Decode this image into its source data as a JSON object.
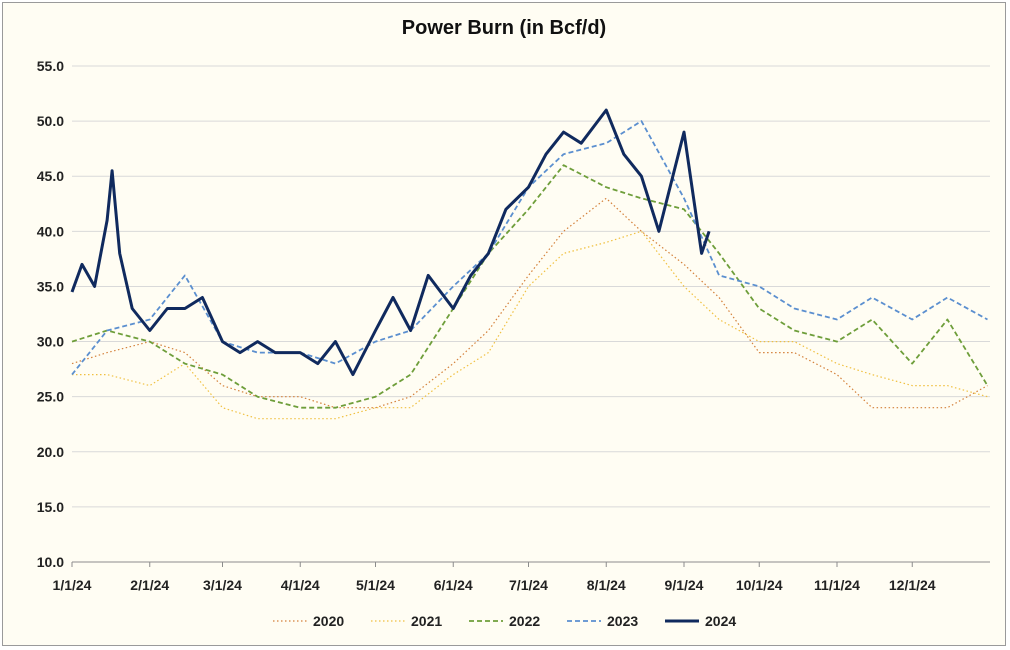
{
  "chart_data": {
    "type": "line",
    "title": "Power Burn (in Bcf/d)",
    "xlabel": "",
    "ylabel": "",
    "ylim": [
      10,
      55
    ],
    "yticks": [
      "10.0",
      "15.0",
      "20.0",
      "25.0",
      "30.0",
      "35.0",
      "40.0",
      "45.0",
      "50.0",
      "55.0"
    ],
    "xticks": [
      "1/1/24",
      "2/1/24",
      "3/1/24",
      "4/1/24",
      "5/1/24",
      "6/1/24",
      "7/1/24",
      "8/1/24",
      "9/1/24",
      "10/1/24",
      "11/1/24",
      "12/1/24"
    ],
    "legend_position": "bottom",
    "grid": "horizontal",
    "series": [
      {
        "name": "2020",
        "color": "#d4803a",
        "style": "dotted",
        "x": [
          "1/1/24",
          "1/15/24",
          "2/1/24",
          "2/15/24",
          "3/1/24",
          "3/15/24",
          "4/1/24",
          "4/15/24",
          "5/1/24",
          "5/15/24",
          "6/1/24",
          "6/15/24",
          "7/1/24",
          "7/15/24",
          "8/1/24",
          "8/15/24",
          "9/1/24",
          "9/15/24",
          "10/1/24",
          "10/15/24",
          "11/1/24",
          "11/15/24",
          "12/1/24",
          "12/15/24",
          "12/31/24"
        ],
        "values": [
          28,
          29,
          30,
          29,
          26,
          25,
          25,
          24,
          24,
          25,
          28,
          31,
          36,
          40,
          43,
          40,
          37,
          34,
          29,
          29,
          27,
          24,
          24,
          24,
          26
        ]
      },
      {
        "name": "2021",
        "color": "#f0c040",
        "style": "dotted",
        "x": [
          "1/1/24",
          "1/15/24",
          "2/1/24",
          "2/15/24",
          "3/1/24",
          "3/15/24",
          "4/1/24",
          "4/15/24",
          "5/1/24",
          "5/15/24",
          "6/1/24",
          "6/15/24",
          "7/1/24",
          "7/15/24",
          "8/1/24",
          "8/15/24",
          "9/1/24",
          "9/15/24",
          "10/1/24",
          "10/15/24",
          "11/1/24",
          "11/15/24",
          "12/1/24",
          "12/15/24",
          "12/31/24"
        ],
        "values": [
          27,
          27,
          26,
          28,
          24,
          23,
          23,
          23,
          24,
          24,
          27,
          29,
          35,
          38,
          39,
          40,
          35,
          32,
          30,
          30,
          28,
          27,
          26,
          26,
          25
        ]
      },
      {
        "name": "2022",
        "color": "#6e9e3a",
        "style": "dashed",
        "x": [
          "1/1/24",
          "1/15/24",
          "2/1/24",
          "2/15/24",
          "3/1/24",
          "3/15/24",
          "4/1/24",
          "4/15/24",
          "5/1/24",
          "5/15/24",
          "6/1/24",
          "6/15/24",
          "7/1/24",
          "7/15/24",
          "8/1/24",
          "8/15/24",
          "9/1/24",
          "9/15/24",
          "10/1/24",
          "10/15/24",
          "11/1/24",
          "11/15/24",
          "12/1/24",
          "12/15/24",
          "12/31/24"
        ],
        "values": [
          30,
          31,
          30,
          28,
          27,
          25,
          24,
          24,
          25,
          27,
          33,
          38,
          42,
          46,
          44,
          43,
          42,
          38,
          33,
          31,
          30,
          32,
          28,
          32,
          26
        ]
      },
      {
        "name": "2023",
        "color": "#5b8fcf",
        "style": "dashed",
        "x": [
          "1/1/24",
          "1/15/24",
          "2/1/24",
          "2/15/24",
          "3/1/24",
          "3/15/24",
          "4/1/24",
          "4/15/24",
          "5/1/24",
          "5/15/24",
          "6/1/24",
          "6/15/24",
          "7/1/24",
          "7/15/24",
          "8/1/24",
          "8/15/24",
          "9/1/24",
          "9/15/24",
          "10/1/24",
          "10/15/24",
          "11/1/24",
          "11/15/24",
          "12/1/24",
          "12/15/24",
          "12/31/24"
        ],
        "values": [
          27,
          31,
          32,
          36,
          30,
          29,
          29,
          28,
          30,
          31,
          35,
          38,
          44,
          47,
          48,
          50,
          43,
          36,
          35,
          33,
          32,
          34,
          32,
          34,
          32
        ]
      },
      {
        "name": "2024",
        "color": "#102a5e",
        "style": "solid",
        "x": [
          "1/1/24",
          "1/5/24",
          "1/10/24",
          "1/15/24",
          "1/17/24",
          "1/20/24",
          "1/25/24",
          "2/1/24",
          "2/8/24",
          "2/15/24",
          "2/22/24",
          "3/1/24",
          "3/8/24",
          "3/15/24",
          "3/22/24",
          "4/1/24",
          "4/8/24",
          "4/15/24",
          "4/22/24",
          "5/1/24",
          "5/8/24",
          "5/15/24",
          "5/22/24",
          "6/1/24",
          "6/8/24",
          "6/15/24",
          "6/22/24",
          "7/1/24",
          "7/8/24",
          "7/15/24",
          "7/22/24",
          "8/1/24",
          "8/8/24",
          "8/15/24",
          "8/22/24",
          "9/1/24",
          "9/8/24",
          "9/11/24"
        ],
        "values": [
          34.5,
          37,
          35,
          41,
          45.5,
          38,
          33,
          31,
          33,
          33,
          34,
          30,
          29,
          30,
          29,
          29,
          28,
          30,
          27,
          31,
          34,
          31,
          36,
          33,
          36,
          38,
          42,
          44,
          47,
          49,
          48,
          51,
          47,
          45,
          40,
          49,
          38,
          40
        ]
      }
    ]
  }
}
